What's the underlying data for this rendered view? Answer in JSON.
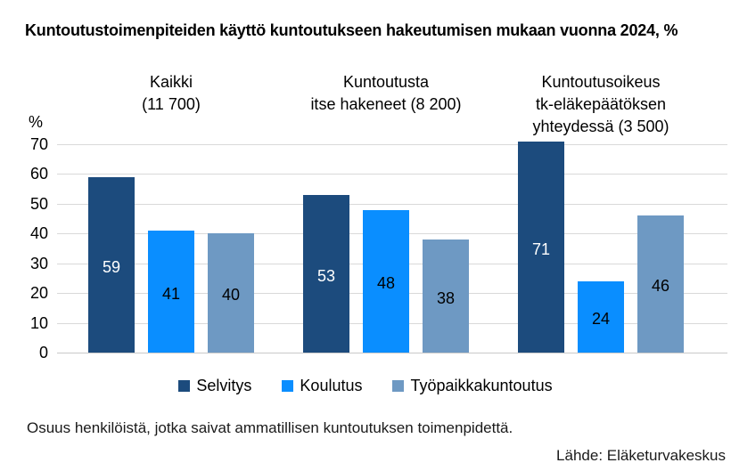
{
  "title": "Kuntoutustoimenpiteiden käyttö kuntoutukseen hakeutumisen mukaan vuonna 2024, %",
  "y_axis": {
    "unit_label": "%",
    "ticks": [
      70,
      60,
      50,
      40,
      30,
      20,
      10,
      0
    ]
  },
  "chart_data": {
    "type": "bar",
    "title": "Kuntoutustoimenpiteiden käyttö kuntoutukseen hakeutumisen mukaan vuonna 2024, %",
    "categories": [
      "Kaikki (11 700)",
      "Kuntoutusta itse hakeneet (8 200)",
      "Kuntoutusoikeus tk-eläkepäätöksen yhteydessä (3 500)"
    ],
    "category_label_lines": [
      [
        "Kaikki",
        "(11 700)"
      ],
      [
        "Kuntoutusta",
        "itse hakeneet (8 200)"
      ],
      [
        "Kuntoutusoikeus",
        "tk-eläkepäätöksen",
        "yhteydessä (3 500)"
      ]
    ],
    "series": [
      {
        "name": "Selvitys",
        "color": "#1C4B7D",
        "value_label_color": "#FFFFFF",
        "values": [
          59,
          53,
          71
        ]
      },
      {
        "name": "Koulutus",
        "color": "#0A8EFF",
        "value_label_color": "#000000",
        "values": [
          41,
          48,
          24
        ]
      },
      {
        "name": "Työpaikkakuntoutus",
        "color": "#6E99C3",
        "value_label_color": "#000000",
        "values": [
          40,
          38,
          46
        ]
      }
    ],
    "ylim": [
      0,
      70
    ],
    "ylabel": "%",
    "xlabel": "",
    "grid": true,
    "legend_position": "bottom"
  },
  "footer": {
    "note": "Osuus henkilöistä, jotka saivat ammatillisen kuntoutuksen toimenpidettä.",
    "source": "Lähde: Eläketurvakeskus"
  }
}
